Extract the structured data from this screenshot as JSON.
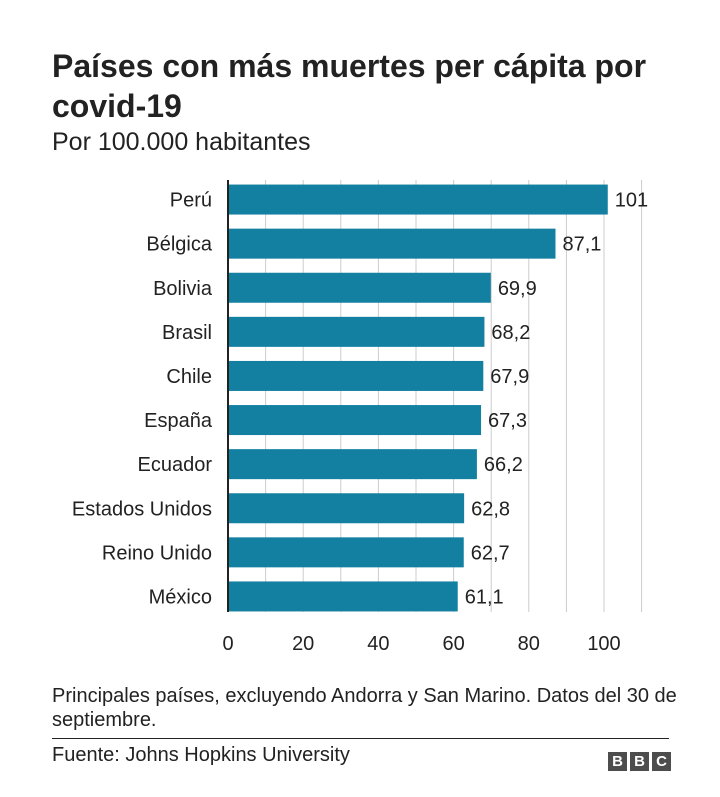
{
  "header": {
    "title": "Países con más muertes per cápita por covid-19",
    "subtitle": "Por 100.000 habitantes"
  },
  "footer": {
    "note": "Principales países, excluyendo Andorra y San Marino. Datos del 30 de septiembre.",
    "source": "Fuente: Johns Hopkins University",
    "logo_letters": [
      "B",
      "B",
      "C"
    ]
  },
  "chart_data": {
    "type": "bar",
    "orientation": "horizontal",
    "title": "Países con más muertes per cápita por covid-19",
    "subtitle": "Por 100.000 habitantes",
    "categories": [
      "Perú",
      "Bélgica",
      "Bolivia",
      "Brasil",
      "Chile",
      "España",
      "Ecuador",
      "Estados Unidos",
      "Reino Unido",
      "México"
    ],
    "values": [
      101,
      87.1,
      69.9,
      68.2,
      67.9,
      67.3,
      66.2,
      62.8,
      62.7,
      61.1
    ],
    "value_labels": [
      "101",
      "87,1",
      "69,9",
      "68,2",
      "67,9",
      "67,3",
      "66,2",
      "62,8",
      "62,7",
      "61,1"
    ],
    "x_ticks": [
      0,
      20,
      40,
      60,
      80,
      100
    ],
    "xlim": [
      0,
      110
    ],
    "grid": true,
    "bar_color": "#1380A1",
    "grid_color": "#cccccc",
    "axis_color": "#222222"
  }
}
